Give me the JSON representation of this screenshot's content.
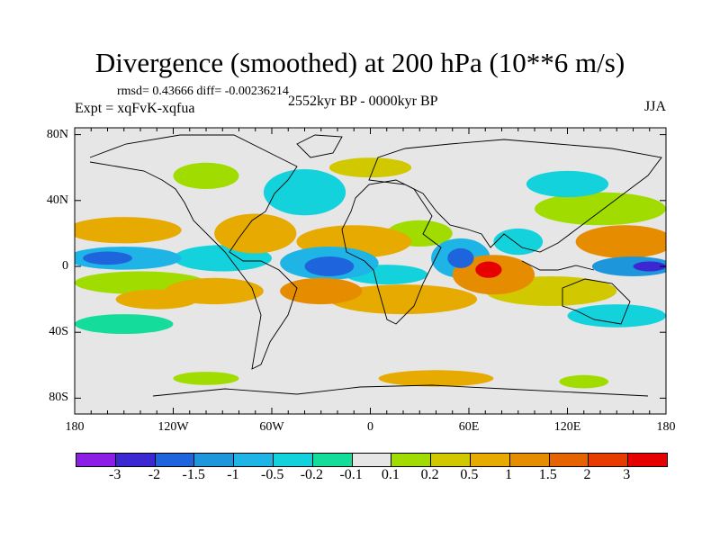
{
  "title": "Divergence (smoothed) at 200 hPa (10**6 m/s)",
  "rmsd_text": "rmsd= 0.43666 diff= -0.00236214",
  "expt_text": "Expt = xqFvK-xqfua",
  "period_text": "2552kyr BP - 0000kyr BP",
  "season_text": "JJA",
  "chart_data": {
    "type": "heatmap",
    "title": "Divergence (smoothed) at 200 hPa (10**6 m/s)",
    "xlim": [
      -180,
      180
    ],
    "ylim": [
      -90,
      90
    ],
    "x_ticks": [
      {
        "v": -180,
        "label": "180"
      },
      {
        "v": -120,
        "label": "120W"
      },
      {
        "v": -60,
        "label": "60W"
      },
      {
        "v": 0,
        "label": "0"
      },
      {
        "v": 60,
        "label": "60E"
      },
      {
        "v": 120,
        "label": "120E"
      },
      {
        "v": 180,
        "label": "180"
      }
    ],
    "y_ticks": [
      {
        "v": 80,
        "label": "80N"
      },
      {
        "v": 40,
        "label": "40N"
      },
      {
        "v": 0,
        "label": "0"
      },
      {
        "v": -40,
        "label": "40S"
      },
      {
        "v": -80,
        "label": "80S"
      }
    ],
    "colorbar": {
      "labels": [
        "-3",
        "-2",
        "-1.5",
        "-1",
        "-0.5",
        "-0.2",
        "-0.1",
        "0.1",
        "0.2",
        "0.5",
        "1",
        "1.5",
        "2",
        "3"
      ],
      "colors": [
        "#8c1ee6",
        "#3c28d2",
        "#1e64dc",
        "#1e96dc",
        "#1eb4e6",
        "#14d2dc",
        "#14dc9a",
        "#e6e6e6",
        "#a0dc00",
        "#d2c800",
        "#e6aa00",
        "#e68c00",
        "#e66400",
        "#e63c00",
        "#e60000"
      ]
    },
    "features": [
      {
        "lon": -150,
        "lat": 22,
        "dlon": 35,
        "dlat": 8,
        "level": 10
      },
      {
        "lon": -150,
        "lat": 5,
        "dlon": 35,
        "dlat": 7,
        "level": 4
      },
      {
        "lon": -160,
        "lat": 5,
        "dlon": 15,
        "dlat": 4,
        "level": 2
      },
      {
        "lon": -140,
        "lat": -10,
        "dlon": 40,
        "dlat": 7,
        "level": 8
      },
      {
        "lon": -130,
        "lat": -20,
        "dlon": 25,
        "dlat": 6,
        "level": 10
      },
      {
        "lon": -150,
        "lat": -35,
        "dlon": 30,
        "dlat": 6,
        "level": 6
      },
      {
        "lon": -95,
        "lat": -15,
        "dlon": 30,
        "dlat": 8,
        "level": 10
      },
      {
        "lon": -90,
        "lat": 5,
        "dlon": 30,
        "dlat": 8,
        "level": 5
      },
      {
        "lon": -70,
        "lat": 20,
        "dlon": 25,
        "dlat": 12,
        "level": 10
      },
      {
        "lon": -40,
        "lat": 45,
        "dlon": 25,
        "dlat": 14,
        "level": 5
      },
      {
        "lon": -40,
        "lat": 40,
        "dlon": 8,
        "dlat": 5,
        "level": 7
      },
      {
        "lon": -100,
        "lat": 55,
        "dlon": 20,
        "dlat": 8,
        "level": 8
      },
      {
        "lon": -10,
        "lat": 15,
        "dlon": 35,
        "dlat": 10,
        "level": 10
      },
      {
        "lon": -25,
        "lat": 2,
        "dlon": 30,
        "dlat": 10,
        "level": 4
      },
      {
        "lon": -25,
        "lat": 0,
        "dlon": 15,
        "dlat": 6,
        "level": 2
      },
      {
        "lon": -30,
        "lat": -15,
        "dlon": 25,
        "dlat": 8,
        "level": 11
      },
      {
        "lon": 20,
        "lat": -20,
        "dlon": 45,
        "dlat": 9,
        "level": 10
      },
      {
        "lon": 10,
        "lat": -5,
        "dlon": 25,
        "dlat": 6,
        "level": 5
      },
      {
        "lon": 30,
        "lat": 20,
        "dlon": 20,
        "dlat": 8,
        "level": 8
      },
      {
        "lon": 55,
        "lat": 5,
        "dlon": 18,
        "dlat": 12,
        "level": 4
      },
      {
        "lon": 55,
        "lat": 5,
        "dlon": 8,
        "dlat": 6,
        "level": 2
      },
      {
        "lon": 75,
        "lat": -5,
        "dlon": 25,
        "dlat": 12,
        "level": 11
      },
      {
        "lon": 72,
        "lat": -2,
        "dlon": 8,
        "dlat": 5,
        "level": 14
      },
      {
        "lon": 110,
        "lat": -15,
        "dlon": 40,
        "dlat": 9,
        "level": 9
      },
      {
        "lon": 90,
        "lat": 15,
        "dlon": 15,
        "dlat": 8,
        "level": 5
      },
      {
        "lon": 140,
        "lat": 35,
        "dlon": 40,
        "dlat": 10,
        "level": 8
      },
      {
        "lon": 155,
        "lat": 15,
        "dlon": 30,
        "dlat": 10,
        "level": 11
      },
      {
        "lon": 160,
        "lat": 0,
        "dlon": 25,
        "dlat": 6,
        "level": 3
      },
      {
        "lon": 170,
        "lat": 0,
        "dlon": 10,
        "dlat": 3,
        "level": 1
      },
      {
        "lon": 150,
        "lat": -30,
        "dlon": 30,
        "dlat": 7,
        "level": 5
      },
      {
        "lon": 120,
        "lat": 50,
        "dlon": 25,
        "dlat": 8,
        "level": 5
      },
      {
        "lon": 0,
        "lat": 60,
        "dlon": 25,
        "dlat": 6,
        "level": 9
      },
      {
        "lon": -100,
        "lat": -68,
        "dlon": 20,
        "dlat": 4,
        "level": 8
      },
      {
        "lon": 40,
        "lat": -68,
        "dlon": 35,
        "dlat": 5,
        "level": 10
      },
      {
        "lon": 130,
        "lat": -70,
        "dlon": 15,
        "dlat": 4,
        "level": 8
      }
    ]
  }
}
